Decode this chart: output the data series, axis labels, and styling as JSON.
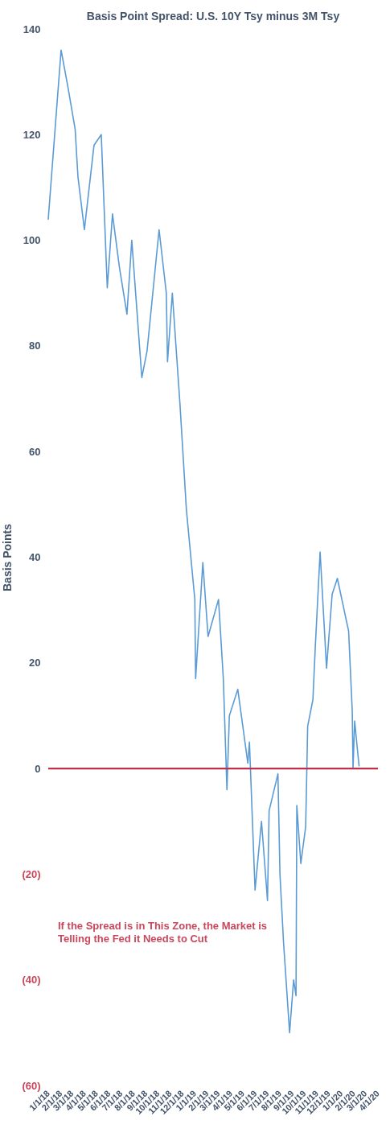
{
  "chart_data": {
    "type": "line",
    "title": "Basis Point Spread: U.S. 10Y Tsy minus 3M Tsy",
    "ylabel": "Basis Points",
    "x": [
      "2018-01-01",
      "2018-01-21",
      "2018-02-02",
      "2018-02-19",
      "2018-03-09",
      "2018-03-16",
      "2018-04-01",
      "2018-04-25",
      "2018-05-13",
      "2018-05-28",
      "2018-06-10",
      "2018-06-27",
      "2018-07-16",
      "2018-07-28",
      "2018-08-22",
      "2018-09-04",
      "2018-10-04",
      "2018-10-22",
      "2018-10-25",
      "2018-11-06",
      "2018-11-25",
      "2018-12-11",
      "2019-01-01",
      "2019-01-03",
      "2019-01-21",
      "2019-02-03",
      "2019-03-01",
      "2019-03-13",
      "2019-03-22",
      "2019-03-28",
      "2019-04-18",
      "2019-05-13",
      "2019-05-17",
      "2019-05-31",
      "2019-06-16",
      "2019-07-01",
      "2019-07-05",
      "2019-07-27",
      "2019-08-01",
      "2019-08-10",
      "2019-08-25",
      "2019-09-04",
      "2019-09-10",
      "2019-09-12",
      "2019-09-22",
      "2019-10-04",
      "2019-10-07",
      "2019-10-09",
      "2019-10-22",
      "2019-10-28",
      "2019-11-09",
      "2019-11-25",
      "2019-12-09",
      "2019-12-22",
      "2020-01-19",
      "2020-01-28",
      "2020-01-30",
      "2020-02-03",
      "2020-02-12",
      "2020-02-14"
    ],
    "series": [
      {
        "color": "#5b9bd5",
        "values": [
          104,
          124,
          136,
          129,
          121,
          112,
          102,
          118,
          120,
          91,
          105,
          95,
          86,
          100,
          74,
          79,
          102,
          90,
          77,
          90,
          69,
          49,
          32,
          17,
          39,
          25,
          32,
          17,
          -4,
          10,
          15,
          1,
          5,
          -23,
          -10,
          -25,
          -8,
          -1,
          -20,
          -33,
          -50,
          -40,
          -43,
          -7,
          -18,
          -11,
          0,
          8,
          13,
          23,
          41,
          19,
          33,
          36,
          26,
          11,
          0,
          9,
          2,
          0.5
        ]
      }
    ],
    "xlim": [
      "2018-01-01",
      "2020-04-01"
    ],
    "xticks": [
      {
        "value": "2018-01-01",
        "label": "1/1/18"
      },
      {
        "value": "2018-02-01",
        "label": "2/1/18"
      },
      {
        "value": "2018-03-01",
        "label": "3/1/18"
      },
      {
        "value": "2018-04-01",
        "label": "4/1/18"
      },
      {
        "value": "2018-05-01",
        "label": "5/1/18"
      },
      {
        "value": "2018-06-01",
        "label": "6/1/18"
      },
      {
        "value": "2018-07-01",
        "label": "7/1/18"
      },
      {
        "value": "2018-08-01",
        "label": "8/1/18"
      },
      {
        "value": "2018-09-01",
        "label": "9/1/18"
      },
      {
        "value": "2018-10-01",
        "label": "10/1/18"
      },
      {
        "value": "2018-11-01",
        "label": "11/1/18"
      },
      {
        "value": "2018-12-01",
        "label": "12/1/18"
      },
      {
        "value": "2019-01-01",
        "label": "1/1/19"
      },
      {
        "value": "2019-02-01",
        "label": "2/1/19"
      },
      {
        "value": "2019-03-01",
        "label": "3/1/19"
      },
      {
        "value": "2019-04-01",
        "label": "4/1/19"
      },
      {
        "value": "2019-05-01",
        "label": "5/1/19"
      },
      {
        "value": "2019-06-01",
        "label": "6/1/19"
      },
      {
        "value": "2019-07-01",
        "label": "7/1/19"
      },
      {
        "value": "2019-08-01",
        "label": "8/1/19"
      },
      {
        "value": "2019-09-01",
        "label": "9/1/19"
      },
      {
        "value": "2019-10-01",
        "label": "10/1/19"
      },
      {
        "value": "2019-11-01",
        "label": "11/1/19"
      },
      {
        "value": "2019-12-01",
        "label": "12/1/19"
      },
      {
        "value": "2020-01-01",
        "label": "1/1/20"
      },
      {
        "value": "2020-02-01",
        "label": "2/1/20"
      },
      {
        "value": "2020-03-01",
        "label": "3/1/20"
      },
      {
        "value": "2020-04-01",
        "label": "4/1/20"
      }
    ],
    "ylim": [
      -60,
      140
    ],
    "yticks": [
      {
        "value": -60,
        "label": "(60)"
      },
      {
        "value": -40,
        "label": "(40)"
      },
      {
        "value": -20,
        "label": "(20)"
      },
      0,
      20,
      40,
      60,
      80,
      100,
      120,
      140
    ],
    "ref_lines": [
      {
        "axis": "y",
        "value": 0,
        "color": "#c0304a"
      }
    ],
    "annotations": [
      "If the Spread is in This Zone, the Market is Telling the Fed it Needs to Cut"
    ]
  }
}
